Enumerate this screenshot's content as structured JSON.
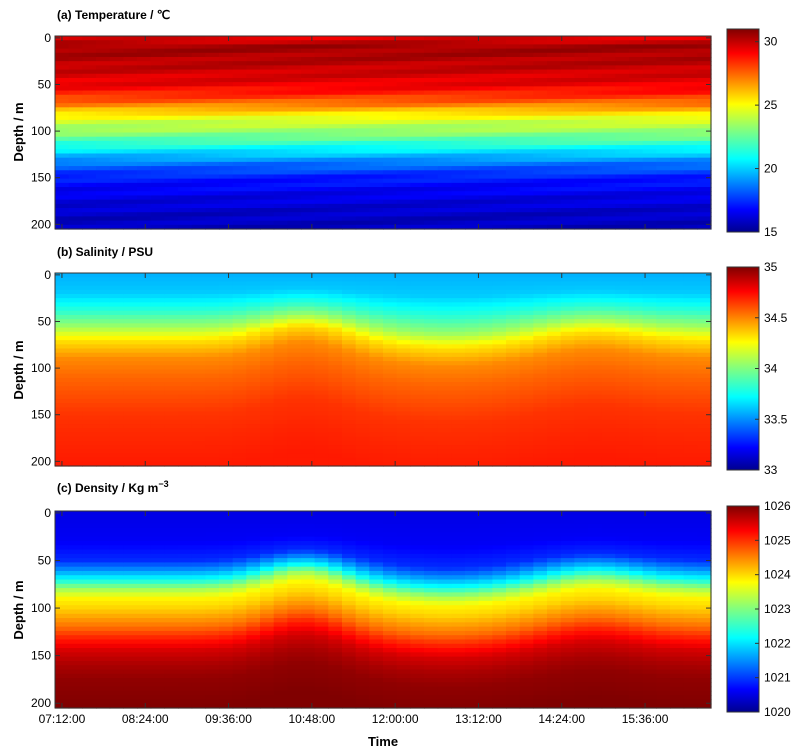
{
  "chart_data": [
    {
      "type": "heatmap",
      "panel": "a",
      "title": "(a)  Temperature / ℃",
      "ylabel": "Depth / m",
      "xlabel": "",
      "ylim": [
        205,
        -2
      ],
      "yticks": [
        0,
        50,
        100,
        150,
        200
      ],
      "colorbar": {
        "range": [
          15,
          31
        ],
        "ticks": [
          15,
          20,
          25,
          30
        ]
      },
      "profile": {
        "depth": [
          0,
          10,
          30,
          50,
          60,
          70,
          80,
          90,
          100,
          110,
          120,
          135,
          150,
          170,
          190,
          200
        ],
        "values": [
          29.5,
          30.5,
          30.0,
          29.3,
          28.5,
          27.3,
          25.6,
          24.2,
          23.4,
          22.2,
          20.8,
          18.8,
          17.4,
          16.6,
          16.1,
          16.0
        ]
      },
      "time_variation": "weak"
    },
    {
      "type": "heatmap",
      "panel": "b",
      "title": "(b)  Salinity / PSU",
      "ylabel": "Depth / m",
      "xlabel": "",
      "ylim": [
        205,
        -2
      ],
      "yticks": [
        0,
        50,
        100,
        150,
        200
      ],
      "colorbar": {
        "range": [
          33,
          35
        ],
        "ticks": [
          33,
          33.5,
          34,
          34.5,
          35
        ]
      },
      "profile": {
        "depth": [
          0,
          20,
          40,
          55,
          70,
          90,
          110,
          130,
          150,
          180,
          205
        ],
        "values": [
          33.6,
          33.65,
          33.85,
          34.05,
          34.3,
          34.48,
          34.55,
          34.6,
          34.65,
          34.68,
          34.7
        ]
      },
      "time_variation": "shallow layer rises near 10:30 and 14:40"
    },
    {
      "type": "heatmap",
      "panel": "c",
      "title": "(c)  Density / Kg m",
      "title_sup": "−3",
      "ylabel": "Depth / m",
      "xlabel": "Time",
      "ylim": [
        205,
        -2
      ],
      "yticks": [
        0,
        50,
        100,
        150,
        200
      ],
      "colorbar": {
        "range": [
          1020,
          1026
        ],
        "ticks": [
          1020,
          1021,
          1022,
          1023,
          1024,
          1025,
          1026
        ]
      },
      "profile": {
        "depth": [
          0,
          30,
          50,
          60,
          70,
          80,
          90,
          100,
          110,
          120,
          130,
          145,
          160,
          175,
          205
        ],
        "values": [
          1020.6,
          1020.7,
          1021.0,
          1021.6,
          1022.3,
          1023.2,
          1023.8,
          1024.0,
          1024.3,
          1024.6,
          1025.0,
          1025.5,
          1025.75,
          1025.9,
          1026.0
        ]
      },
      "time_variation": "shallow layer rises near 10:30 and 14:40"
    }
  ],
  "xaxis": {
    "range_hours": [
      7.1,
      16.55
    ],
    "ticks": [
      {
        "value": 7.2,
        "label": "07:12:00"
      },
      {
        "value": 8.4,
        "label": "08:24:00"
      },
      {
        "value": 9.6,
        "label": "09:36:00"
      },
      {
        "value": 10.8,
        "label": "10:48:00"
      },
      {
        "value": 12.0,
        "label": "12:00:00"
      },
      {
        "value": 13.2,
        "label": "13:12:00"
      },
      {
        "value": 14.4,
        "label": "14:24:00"
      },
      {
        "value": 15.6,
        "label": "15:36:00"
      }
    ]
  },
  "colormap": "jet"
}
